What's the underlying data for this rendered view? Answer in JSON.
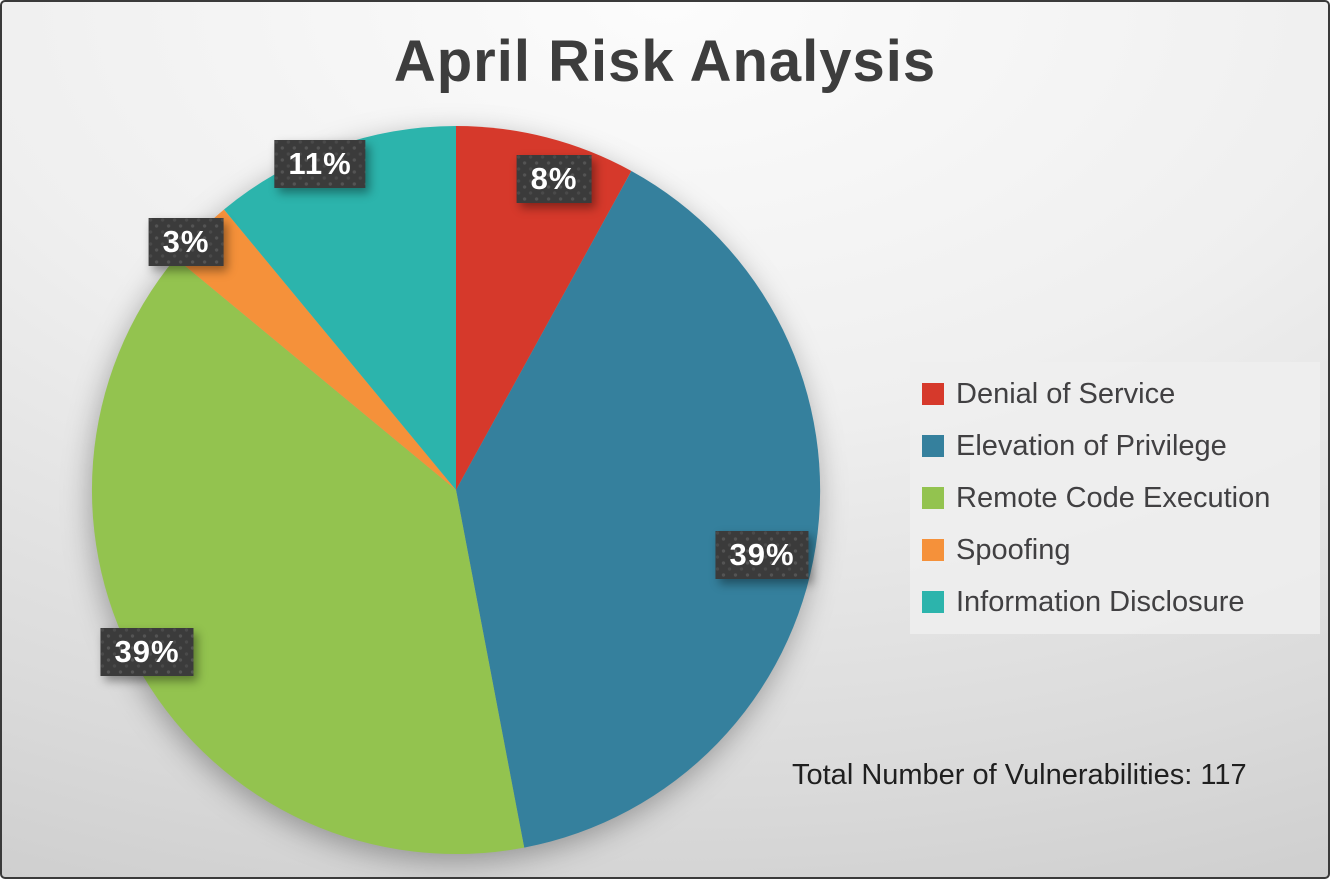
{
  "chart_data": {
    "type": "pie",
    "title": "April Risk Analysis",
    "note": "Total Number of Vulnerabilities: 117",
    "total_vulnerabilities": 117,
    "legend_position": "right",
    "start_angle_deg": 0,
    "direction": "clockwise",
    "slices": [
      {
        "label": "Denial of Service",
        "value_pct": 8,
        "display": "8%",
        "color": "#d6392b"
      },
      {
        "label": "Elevation of Privilege",
        "value_pct": 39,
        "display": "39%",
        "color": "#35809d"
      },
      {
        "label": "Remote Code Execution",
        "value_pct": 39,
        "display": "39%",
        "color": "#93c34f"
      },
      {
        "label": "Spoofing",
        "value_pct": 3,
        "display": "3%",
        "color": "#f5913a"
      },
      {
        "label": "Information Disclosure",
        "value_pct": 11,
        "display": "11%",
        "color": "#2cb4ac"
      }
    ]
  }
}
